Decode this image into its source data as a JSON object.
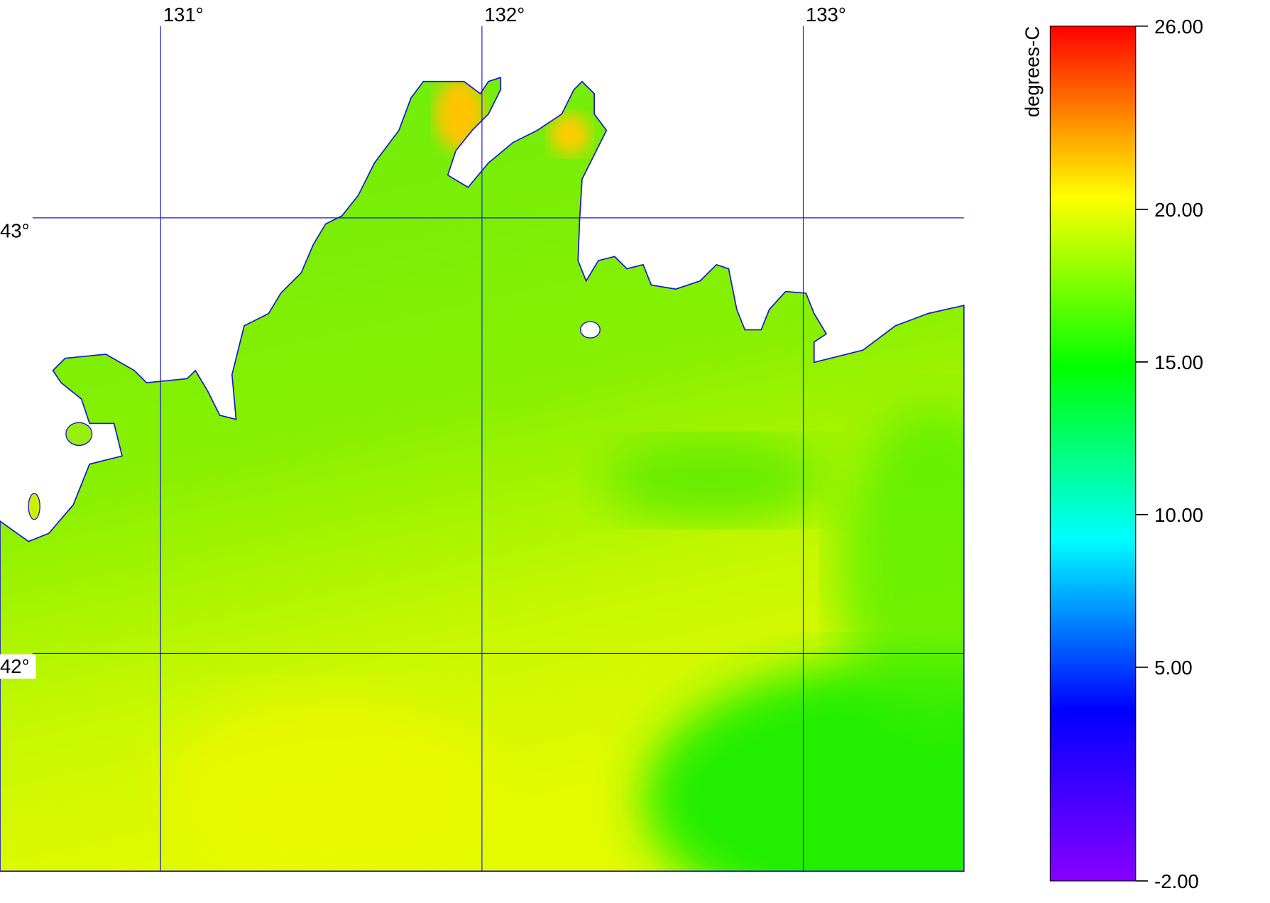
{
  "map": {
    "lonlim": [
      130.5,
      133.5
    ],
    "latlim": [
      41.5,
      43.5
    ],
    "lonticks": [
      {
        "value": 131,
        "label": "131°"
      },
      {
        "value": 132,
        "label": "132°"
      },
      {
        "value": 133,
        "label": "133°"
      }
    ],
    "latticks": [
      {
        "value": 43,
        "label": "43°"
      },
      {
        "value": 42,
        "label": "42°"
      }
    ],
    "grid_color": "#1a1acc"
  },
  "colorbar": {
    "label": "degrees-C",
    "range": [
      -2,
      26
    ],
    "ticks": [
      {
        "value": 26,
        "label": "26.00"
      },
      {
        "value": 20,
        "label": "20.00"
      },
      {
        "value": 15,
        "label": "15.00"
      },
      {
        "value": 10,
        "label": "10.00"
      },
      {
        "value": 5,
        "label": "5.00"
      },
      {
        "value": -2,
        "label": "-2.00"
      }
    ],
    "colors": [
      "#8800ff",
      "#0000ff",
      "#00ffff",
      "#00ff00",
      "#ffff00",
      "#ff0000"
    ]
  }
}
